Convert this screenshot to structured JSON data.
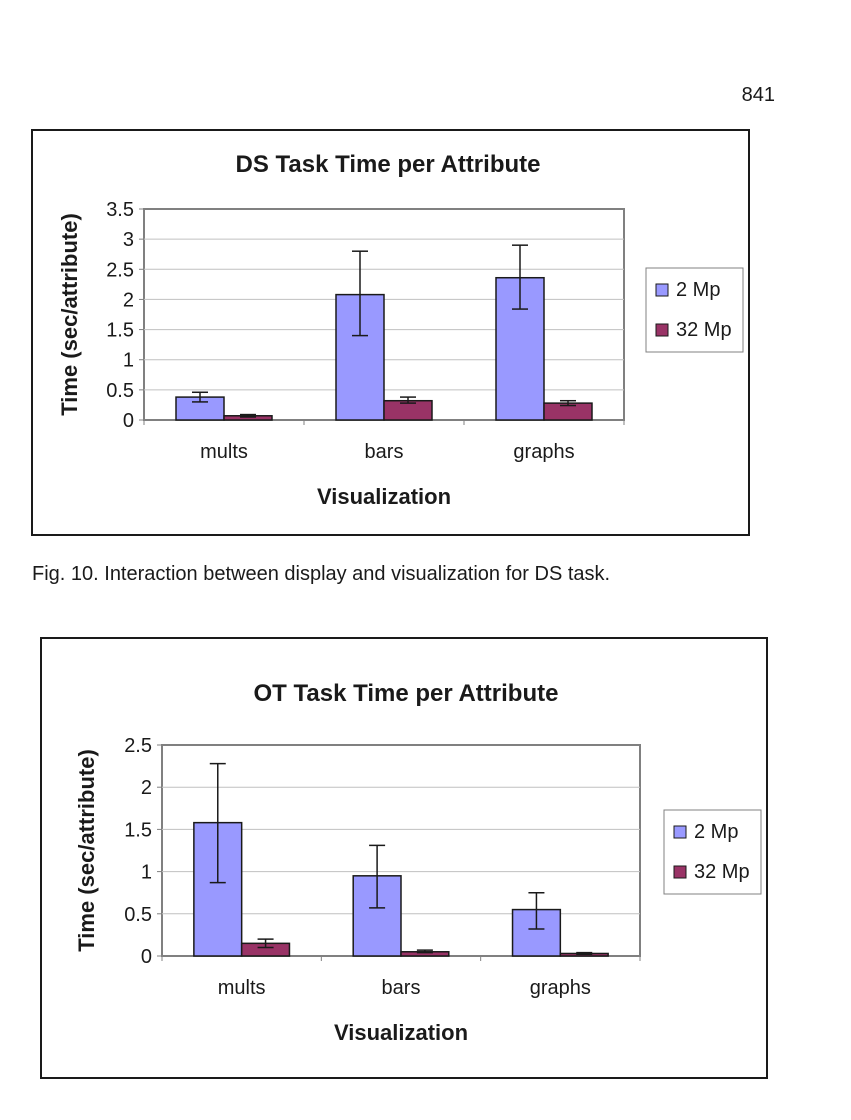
{
  "page": {
    "number": "841",
    "caption": "Fig. 10. Interaction between display and visualization for DS task."
  },
  "colors": {
    "series_2mp": "#9999ff",
    "series_32mp": "#993366",
    "grid": "#c0c0c0",
    "axis": "#808080",
    "text": "#1a1a1a"
  },
  "chart_data": [
    {
      "type": "bar",
      "title": "DS Task Time per Attribute",
      "xlabel": "Visualization",
      "ylabel": "Time (sec/attribute)",
      "categories": [
        "mults",
        "bars",
        "graphs"
      ],
      "ylim": [
        0,
        3.5
      ],
      "yticks": [
        "0",
        "0.5",
        "1",
        "1.5",
        "2",
        "2.5",
        "3",
        "3.5"
      ],
      "ytick_values": [
        0,
        0.5,
        1,
        1.5,
        2,
        2.5,
        3,
        3.5
      ],
      "grid": true,
      "legend": "right",
      "series": [
        {
          "name": "2 Mp",
          "values": [
            0.38,
            2.08,
            2.36
          ],
          "error_low": [
            0.3,
            1.4,
            1.84
          ],
          "error_high": [
            0.46,
            2.8,
            2.9
          ]
        },
        {
          "name": "32 Mp",
          "values": [
            0.07,
            0.32,
            0.28
          ],
          "error_low": [
            0.05,
            0.28,
            0.24
          ],
          "error_high": [
            0.09,
            0.38,
            0.32
          ]
        }
      ]
    },
    {
      "type": "bar",
      "title": "OT Task Time per Attribute",
      "xlabel": "Visualization",
      "ylabel": "Time (sec/attribute)",
      "categories": [
        "mults",
        "bars",
        "graphs"
      ],
      "ylim": [
        0,
        2.5
      ],
      "yticks": [
        "0",
        "0.5",
        "1",
        "1.5",
        "2",
        "2.5"
      ],
      "ytick_values": [
        0,
        0.5,
        1,
        1.5,
        2,
        2.5
      ],
      "grid": true,
      "legend": "right",
      "series": [
        {
          "name": "2 Mp",
          "values": [
            1.58,
            0.95,
            0.55
          ],
          "error_low": [
            0.87,
            0.57,
            0.32
          ],
          "error_high": [
            2.28,
            1.31,
            0.75
          ]
        },
        {
          "name": "32 Mp",
          "values": [
            0.15,
            0.05,
            0.03
          ],
          "error_low": [
            0.1,
            0.04,
            0.02
          ],
          "error_high": [
            0.2,
            0.07,
            0.04
          ]
        }
      ]
    }
  ]
}
